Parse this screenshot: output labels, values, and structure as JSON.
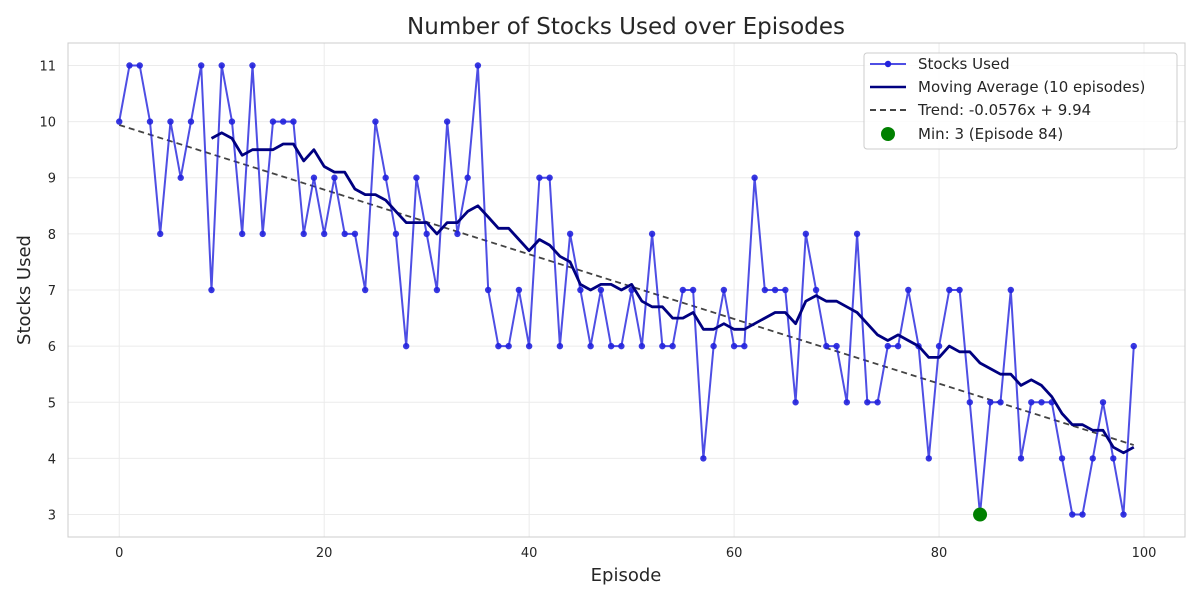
{
  "chart_data": {
    "type": "line",
    "title": "Number of Stocks Used over Episodes",
    "xlabel": "Episode",
    "ylabel": "Stocks Used",
    "xlim": [
      -5,
      104
    ],
    "ylim": [
      2.6,
      11.4
    ],
    "xticks": [
      0,
      20,
      40,
      60,
      80,
      100
    ],
    "yticks": [
      3,
      4,
      5,
      6,
      7,
      8,
      9,
      10,
      11
    ],
    "grid": true,
    "legend_position": "top-right",
    "series": [
      {
        "name": "Stocks Used",
        "color": "#2222dd",
        "x_start": 0,
        "values": [
          10,
          11,
          11,
          10,
          8,
          10,
          9,
          10,
          11,
          7,
          11,
          10,
          8,
          11,
          8,
          10,
          10,
          10,
          8,
          9,
          8,
          9,
          8,
          8,
          7,
          10,
          9,
          8,
          6,
          9,
          8,
          7,
          10,
          8,
          9,
          11,
          7,
          6,
          6,
          7,
          6,
          9,
          9,
          6,
          8,
          7,
          6,
          7,
          6,
          6,
          7,
          6,
          8,
          6,
          6,
          7,
          7,
          4,
          6,
          7,
          6,
          6,
          9,
          7,
          7,
          7,
          5,
          8,
          7,
          6,
          6,
          5,
          8,
          5,
          5,
          6,
          6,
          7,
          6,
          4,
          6,
          7,
          7,
          5,
          3,
          5,
          5,
          7,
          4,
          5,
          5,
          5,
          4,
          3,
          3,
          4,
          5,
          4,
          3,
          6
        ]
      },
      {
        "name": "Moving Average (10 episodes)",
        "color": "#000080",
        "x_start": 9,
        "values": [
          9.7,
          9.8,
          9.7,
          9.4,
          9.5,
          9.5,
          9.5,
          9.6,
          9.6,
          9.3,
          9.5,
          9.2,
          9.1,
          9.1,
          8.8,
          8.7,
          8.7,
          8.6,
          8.4,
          8.2,
          8.2,
          8.2,
          8.0,
          8.2,
          8.2,
          8.4,
          8.5,
          8.3,
          8.1,
          8.1,
          7.9,
          7.7,
          7.9,
          7.8,
          7.6,
          7.5,
          7.1,
          7.0,
          7.1,
          7.1,
          7.0,
          7.1,
          6.8,
          6.7,
          6.7,
          6.5,
          6.5,
          6.6,
          6.3,
          6.3,
          6.4,
          6.3,
          6.3,
          6.4,
          6.5,
          6.6,
          6.6,
          6.4,
          6.8,
          6.9,
          6.8,
          6.8,
          6.7,
          6.6,
          6.4,
          6.2,
          6.1,
          6.2,
          6.1,
          6.0,
          5.8,
          5.8,
          6.0,
          5.9,
          5.9,
          5.7,
          5.6,
          5.5,
          5.5,
          5.3,
          5.4,
          5.3,
          5.1,
          4.8,
          4.6,
          4.6,
          4.5,
          4.5,
          4.2,
          4.1,
          4.2
        ]
      }
    ],
    "trend": {
      "label": "Trend: -0.0576x + 9.94",
      "slope": -0.0576,
      "intercept": 9.94,
      "x_range": [
        0,
        99
      ],
      "color": "#444444"
    },
    "min_point": {
      "label": "Min: 3 (Episode 84)",
      "x": 84,
      "y": 3,
      "color": "#008000"
    }
  }
}
